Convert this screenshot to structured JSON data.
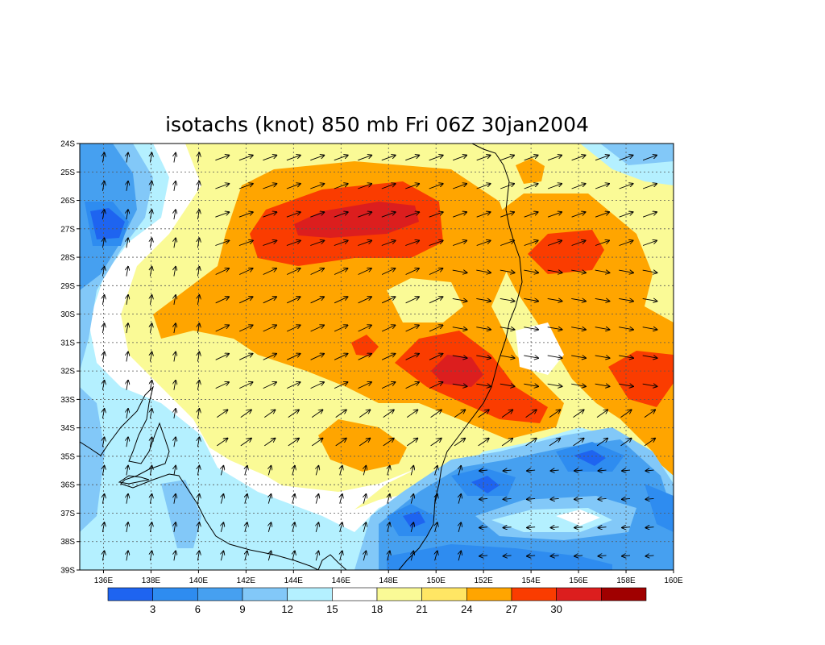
{
  "title": "isotachs (knot) 850 mb Fri 06Z 30jan2004",
  "lat_labels": [
    "24S",
    "25S",
    "26S",
    "27S",
    "28S",
    "29S",
    "30S",
    "31S",
    "32S",
    "33S",
    "34S",
    "35S",
    "36S",
    "37S",
    "38S",
    "39S"
  ],
  "lon_labels": [
    "136E",
    "138E",
    "140E",
    "142E",
    "144E",
    "146E",
    "148E",
    "150E",
    "152E",
    "154E",
    "156E",
    "158E",
    "160E"
  ],
  "colorbar": {
    "colors": [
      "#1e64f0",
      "#2e8cf0",
      "#46a0f0",
      "#82c8f8",
      "#b4f0ff",
      "#ffffff",
      "#fafa96",
      "#ffe664",
      "#ffa500",
      "#fa3c00",
      "#dc1e1e",
      "#a00000"
    ],
    "labels": [
      "3",
      "6",
      "9",
      "12",
      "15",
      "18",
      "21",
      "24",
      "27",
      "30"
    ]
  },
  "chart_data": {
    "type": "heatmap",
    "title": "isotachs (knot) 850 mb Fri 06Z 30jan2004",
    "variable": "wind speed isotachs (knot), 850 mb",
    "xlim": [
      135,
      160
    ],
    "ylim": [
      -39,
      -24
    ],
    "x_ticks": [
      "136E",
      "138E",
      "140E",
      "142E",
      "144E",
      "146E",
      "148E",
      "150E",
      "152E",
      "154E",
      "156E",
      "158E",
      "160E"
    ],
    "y_ticks": [
      "24S",
      "25S",
      "26S",
      "27S",
      "28S",
      "29S",
      "30S",
      "31S",
      "32S",
      "33S",
      "34S",
      "35S",
      "36S",
      "37S",
      "38S",
      "39S"
    ],
    "levels": [
      3,
      6,
      9,
      12,
      15,
      18,
      21,
      24,
      27,
      30
    ],
    "grid": "dotted",
    "wind_vectors": true,
    "maxima": [
      {
        "lon": 146,
        "lat": -27.2,
        "speed": 30
      },
      {
        "lon": 151,
        "lat": -32,
        "speed": 30
      },
      {
        "lon": 155.5,
        "lat": -27.8,
        "speed": 27
      },
      {
        "lon": 158.5,
        "lat": -32.3,
        "speed": 27
      }
    ],
    "minima": [
      {
        "lon": 136.5,
        "lat": -27,
        "speed": 3
      },
      {
        "lon": 152,
        "lat": -36,
        "speed": 3
      },
      {
        "lon": 156.5,
        "lat": -35,
        "speed": 3
      },
      {
        "lon": 149,
        "lat": -37.2,
        "speed": 3
      }
    ]
  }
}
